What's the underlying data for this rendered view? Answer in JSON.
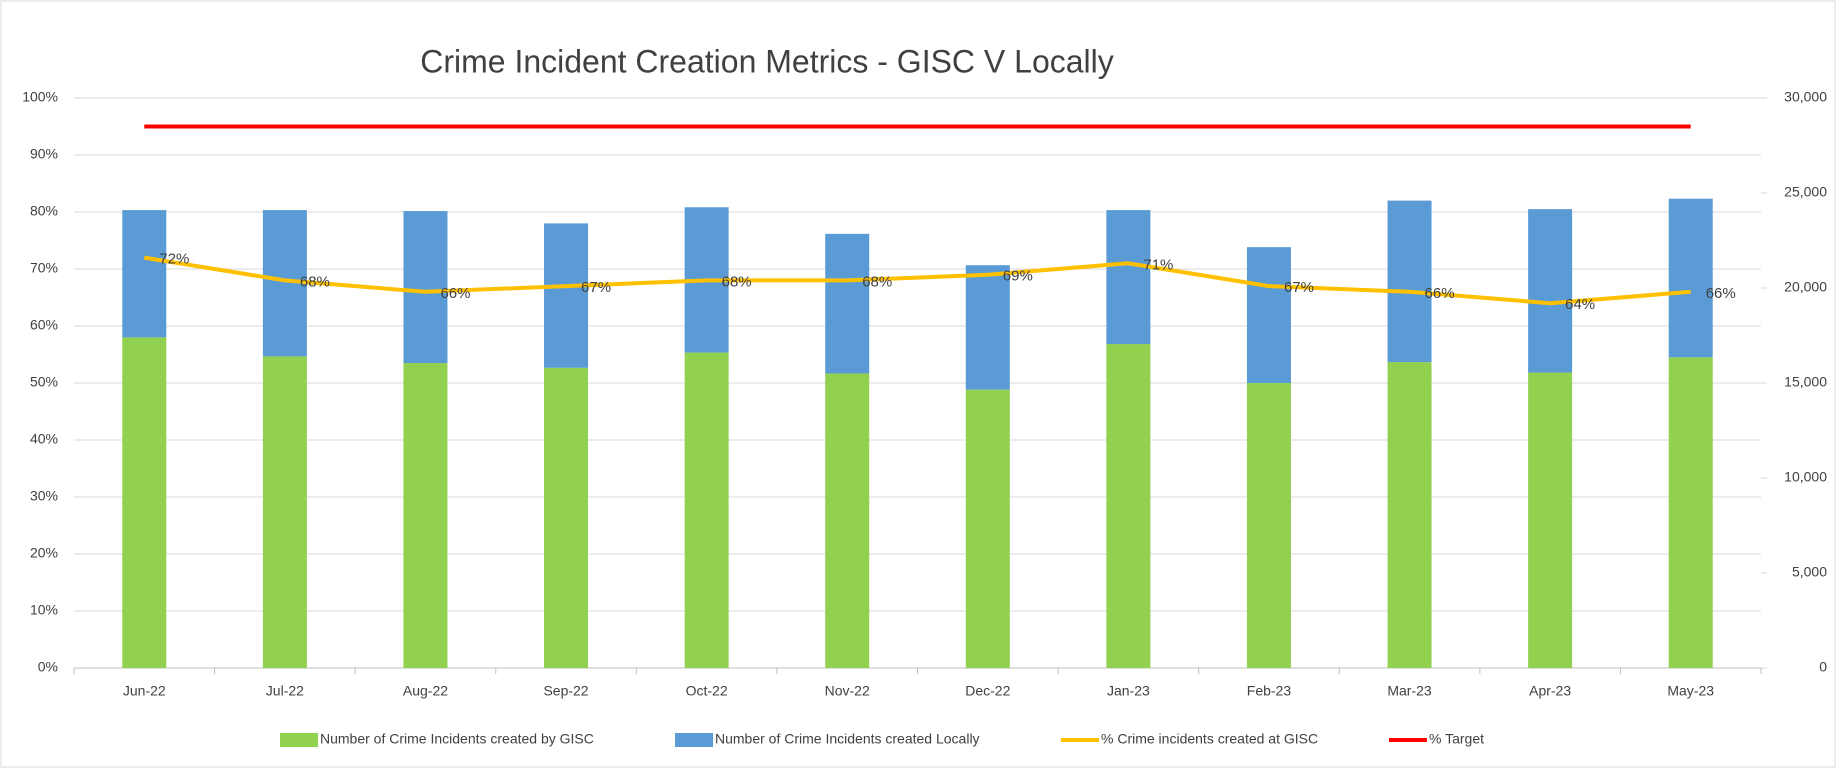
{
  "chart_data": {
    "type": "bar",
    "title": "Crime Incident Creation Metrics - GISC V Locally",
    "categories": [
      "Jun-22",
      "Jul-22",
      "Aug-22",
      "Sep-22",
      "Oct-22",
      "Nov-22",
      "Dec-22",
      "Jan-23",
      "Feb-23",
      "Mar-23",
      "Apr-23",
      "May-23"
    ],
    "series": [
      {
        "name": "Number of Crime Incidents created by GISC",
        "type": "bar",
        "axis": "y2",
        "color": "#92d050",
        "values": [
          17400,
          16400,
          16050,
          15800,
          16600,
          15500,
          14650,
          17050,
          15000,
          16100,
          15550,
          16350
        ]
      },
      {
        "name": "Number of Crime Incidents created Locally",
        "type": "bar",
        "axis": "y2",
        "color": "#5b9bd5",
        "values": [
          6700,
          7700,
          8000,
          7600,
          7650,
          7350,
          6550,
          7050,
          7150,
          8500,
          8600,
          8350
        ]
      },
      {
        "name": "% Crime incidents created at GISC",
        "type": "line",
        "color": "#ffc000",
        "values": [
          72,
          68,
          66,
          67,
          68,
          68,
          69,
          71,
          67,
          66,
          64,
          66
        ],
        "value_labels": [
          "72%",
          "68%",
          "66%",
          "67%",
          "68%",
          "68%",
          "69%",
          "71%",
          "67%",
          "66%",
          "64%",
          "66%"
        ]
      },
      {
        "name": "% Target",
        "type": "line",
        "color": "#ff0000",
        "values": [
          95,
          95,
          95,
          95,
          95,
          95,
          95,
          95,
          95,
          95,
          95,
          95
        ]
      }
    ],
    "stacked": true,
    "ylim": [
      0,
      100
    ],
    "yticks": [
      {
        "value": 0,
        "label": "0%"
      },
      {
        "value": 10,
        "label": "10%"
      },
      {
        "value": 20,
        "label": "20%"
      },
      {
        "value": 30,
        "label": "30%"
      },
      {
        "value": 40,
        "label": "40%"
      },
      {
        "value": 50,
        "label": "50%"
      },
      {
        "value": 60,
        "label": "60%"
      },
      {
        "value": 70,
        "label": "70%"
      },
      {
        "value": 80,
        "label": "80%"
      },
      {
        "value": 90,
        "label": "90%"
      },
      {
        "value": 100,
        "label": "100%"
      }
    ],
    "y2lim": [
      0,
      30000
    ],
    "y2ticks": [
      0,
      {
        "value": 5000,
        "label": "5,000"
      },
      {
        "value": 10000,
        "label": "10,000"
      },
      {
        "value": 15000,
        "label": "15,000"
      },
      {
        "value": 20000,
        "label": "20,000"
      },
      {
        "value": 25000,
        "label": "25,000"
      },
      {
        "value": 30000,
        "label": "30,000"
      }
    ],
    "grid": true,
    "legend": "bottom"
  }
}
